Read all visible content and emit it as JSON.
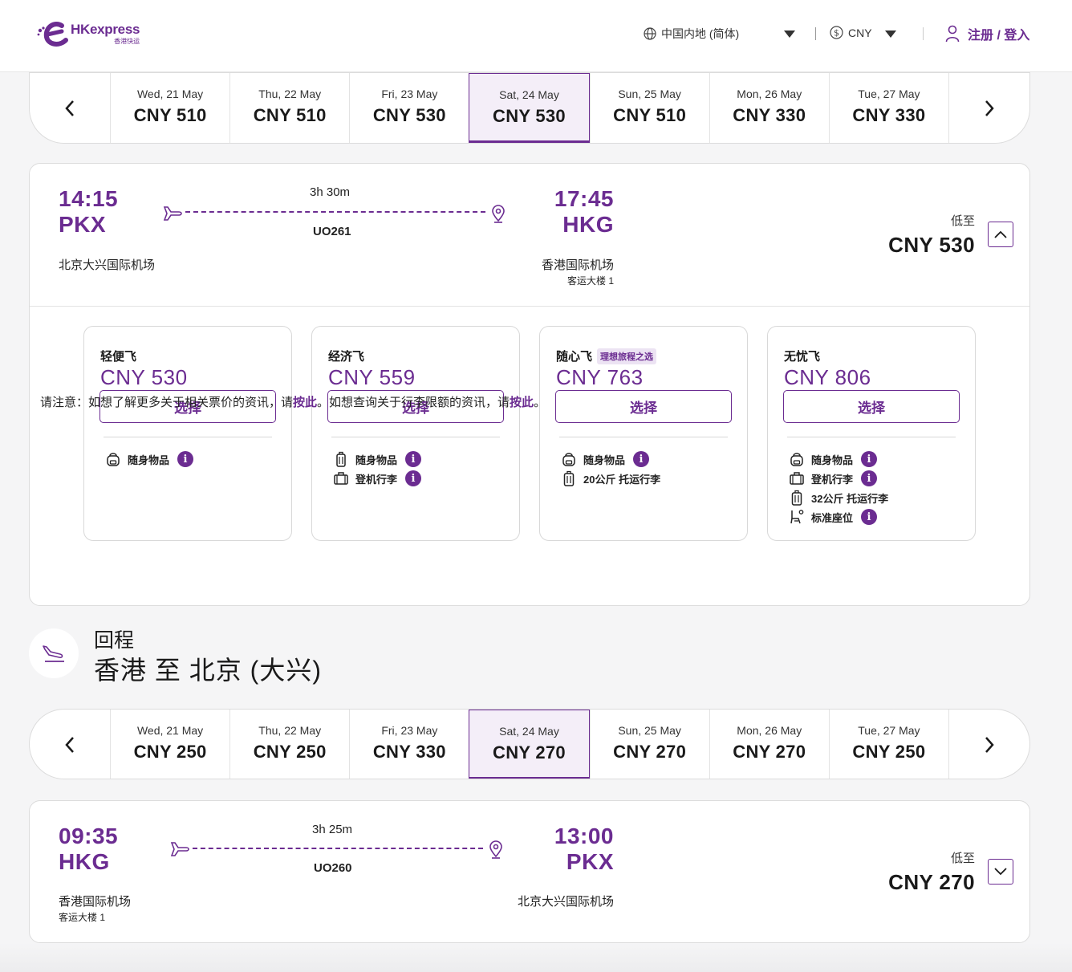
{
  "header": {
    "logo_main": "HKexpress",
    "logo_sub": "香港快运",
    "language": "中国内地 (简体)",
    "currency": "CNY",
    "login": "注册 / 登入"
  },
  "outbound_dates": [
    {
      "date": "Wed, 21 May",
      "price": "CNY 510"
    },
    {
      "date": "Thu, 22 May",
      "price": "CNY 510"
    },
    {
      "date": "Fri, 23 May",
      "price": "CNY 530"
    },
    {
      "date": "Sat, 24 May",
      "price": "CNY 530",
      "selected": true
    },
    {
      "date": "Sun, 25 May",
      "price": "CNY 510"
    },
    {
      "date": "Mon, 26 May",
      "price": "CNY 330"
    },
    {
      "date": "Tue, 27 May",
      "price": "CNY 330"
    }
  ],
  "outbound_flight": {
    "dep_time": "14:15",
    "dep_code": "PKX",
    "dep_airport": "北京大兴国际机场",
    "duration": "3h 30m",
    "flight_no": "UO261",
    "arr_time": "17:45",
    "arr_code": "HKG",
    "arr_airport": "香港国际机场",
    "arr_terminal": "客运大楼 1",
    "from_label": "低至",
    "from_price": "CNY 530"
  },
  "fares": [
    {
      "name": "轻便飞",
      "tag": "",
      "price": "CNY 530",
      "button": "选择",
      "features": [
        {
          "icon": "backpack-icon",
          "label": "随身物品",
          "info": true
        }
      ]
    },
    {
      "name": "经济飞",
      "tag": "",
      "price": "CNY 559",
      "button": "选择",
      "features": [
        {
          "icon": "carry-on-icon",
          "label": "随身物品",
          "info": true
        },
        {
          "icon": "cabin-bag-icon",
          "label": "登机行李",
          "info": true
        }
      ]
    },
    {
      "name": "随心飞",
      "tag": "理想旅程之选",
      "price": "CNY 763",
      "button": "选择",
      "features": [
        {
          "icon": "backpack-icon",
          "label": "随身物品",
          "info": true
        },
        {
          "icon": "checked-bag-icon",
          "label": "20公斤 托运行李",
          "info": false
        }
      ]
    },
    {
      "name": "无忧飞",
      "tag": "",
      "price": "CNY 806",
      "button": "选择",
      "features": [
        {
          "icon": "backpack-icon",
          "label": "随身物品",
          "info": true
        },
        {
          "icon": "cabin-bag-icon",
          "label": "登机行李",
          "info": true
        },
        {
          "icon": "checked-bag-icon",
          "label": "32公斤 托运行李",
          "info": false
        },
        {
          "icon": "seat-icon",
          "label": "标准座位",
          "info": true
        }
      ]
    }
  ],
  "note": {
    "part1": "请注意：如想了解更多关于相关票价的资讯，请",
    "link1": "按此",
    "part2": "。如想查询关于行李限额的资讯，请",
    "link2": "按此",
    "part3": "。"
  },
  "return_section": {
    "subtitle": "回程",
    "title": "香港 至 北京 (大兴)"
  },
  "return_dates": [
    {
      "date": "Wed, 21 May",
      "price": "CNY 250"
    },
    {
      "date": "Thu, 22 May",
      "price": "CNY 250"
    },
    {
      "date": "Fri, 23 May",
      "price": "CNY 330"
    },
    {
      "date": "Sat, 24 May",
      "price": "CNY 270",
      "selected": true
    },
    {
      "date": "Sun, 25 May",
      "price": "CNY 270"
    },
    {
      "date": "Mon, 26 May",
      "price": "CNY 270"
    },
    {
      "date": "Tue, 27 May",
      "price": "CNY 250"
    }
  ],
  "return_flight": {
    "dep_time": "09:35",
    "dep_code": "HKG",
    "dep_airport": "香港国际机场",
    "dep_terminal": "客运大楼 1",
    "duration": "3h 25m",
    "flight_no": "UO260",
    "arr_time": "13:00",
    "arr_code": "PKX",
    "arr_airport": "北京大兴国际机场",
    "from_label": "低至",
    "from_price": "CNY 270"
  },
  "colors": {
    "brand": "#6b2c91"
  }
}
